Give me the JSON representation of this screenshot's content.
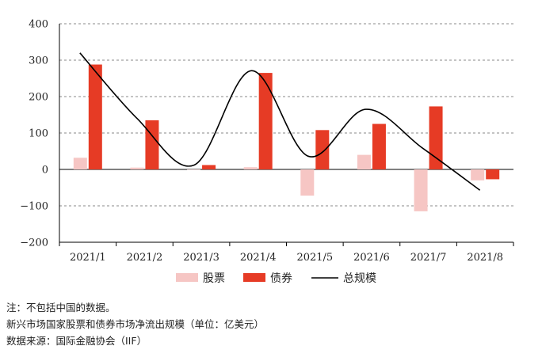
{
  "chart_data": {
    "type": "bar",
    "title": "",
    "xlabel": "",
    "ylabel": "",
    "categories": [
      "2021/1",
      "2021/2",
      "2021/3",
      "2021/4",
      "2021/5",
      "2021/6",
      "2021/7",
      "2021/8"
    ],
    "ylim": [
      -200,
      400
    ],
    "yticks": [
      -200,
      -100,
      0,
      100,
      200,
      300,
      400
    ],
    "grid": true,
    "legend_position": "bottom",
    "series": [
      {
        "name": "股票",
        "type": "bar",
        "color": "#f6c6c4",
        "values": [
          32,
          5,
          0,
          6,
          -72,
          40,
          -115,
          -30
        ]
      },
      {
        "name": "债券",
        "type": "bar",
        "color": "#e63b25",
        "values": [
          288,
          135,
          12,
          265,
          108,
          125,
          173,
          -27
        ]
      },
      {
        "name": "总规模",
        "type": "line",
        "color": "#000000",
        "values": [
          320,
          140,
          12,
          271,
          36,
          165,
          58,
          -57
        ]
      }
    ]
  },
  "notes": {
    "line1": "注：不包括中国的数据。",
    "line2": "新兴市场国家股票和债券市场净流出规模（单位：亿美元）",
    "line3": "数据来源：国际金融协会（IIF）"
  }
}
